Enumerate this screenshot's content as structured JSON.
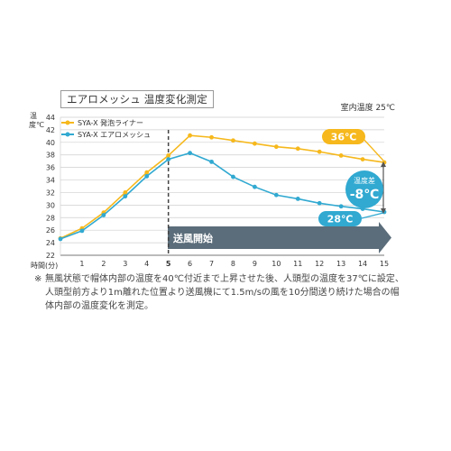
{
  "title": "エアロメッシュ 温度変化測定",
  "subtitle": "室内温度 25℃",
  "y_unit": "温度℃",
  "x_unit": "時間(分)",
  "note_mark": "※",
  "note": "無風状態で帽体内部の温度を40℃付近まで上昇させた後、人頭型の温度を37℃に設定、人頭型前方より1m離れた位置より送風機にて1.5m/sの風を10分間送り続けた場合の帽体内部の温度変化を測定。",
  "colors": {
    "yellow": "#f6b81c",
    "blue": "#31a9d1",
    "arrow": "#5b6d7a",
    "grid": "#cfcfcf",
    "axis": "#777777",
    "dashed": "#444444"
  },
  "chart_data": {
    "type": "line",
    "x": [
      1,
      2,
      3,
      4,
      5,
      6,
      7,
      8,
      9,
      10,
      11,
      12,
      13,
      14,
      15
    ],
    "xlim": [
      0,
      15
    ],
    "ylim": [
      22,
      44
    ],
    "y_ticks": [
      22,
      24,
      26,
      28,
      30,
      32,
      34,
      36,
      38,
      40,
      42,
      44
    ],
    "x_ticks": [
      1,
      2,
      3,
      4,
      5,
      6,
      7,
      8,
      9,
      10,
      11,
      12,
      13,
      14,
      15
    ],
    "series": [
      {
        "name": "SYA-X 発泡ライナー",
        "color": "#f6b81c",
        "x": [
          0,
          1,
          2,
          3,
          4,
          5,
          6,
          7,
          8,
          9,
          10,
          11,
          12,
          13,
          14,
          15
        ],
        "values": [
          24.7,
          26.3,
          28.8,
          32.0,
          35.2,
          37.9,
          41.1,
          40.8,
          40.3,
          39.8,
          39.3,
          39.0,
          38.5,
          37.9,
          37.3,
          36.8
        ]
      },
      {
        "name": "SYA-X エアロメッシュ",
        "color": "#31a9d1",
        "x": [
          0,
          1,
          2,
          3,
          4,
          5,
          6,
          7,
          8,
          9,
          10,
          11,
          12,
          13,
          14,
          15
        ],
        "values": [
          24.6,
          25.9,
          28.4,
          31.4,
          34.6,
          37.3,
          38.3,
          36.9,
          34.5,
          32.9,
          31.6,
          31.0,
          30.3,
          29.8,
          29.4,
          28.9
        ]
      }
    ],
    "annotations": {
      "airflow_start_x": 5,
      "airflow_label": "送風開始",
      "high_label": "36℃",
      "low_label": "28℃",
      "diff_top": "温度差",
      "diff_value": "-8℃"
    }
  }
}
